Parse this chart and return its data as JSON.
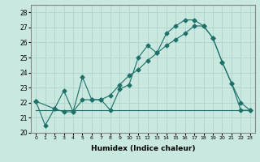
{
  "xlabel": "Humidex (Indice chaleur)",
  "ylabel": "",
  "xlim": [
    -0.5,
    23.5
  ],
  "ylim": [
    20,
    28.5
  ],
  "yticks": [
    20,
    21,
    22,
    23,
    24,
    25,
    26,
    27,
    28
  ],
  "xticks": [
    0,
    1,
    2,
    3,
    4,
    5,
    6,
    7,
    8,
    9,
    10,
    11,
    12,
    13,
    14,
    15,
    16,
    17,
    18,
    19,
    20,
    21,
    22,
    23
  ],
  "bg_color": "#c8e8e0",
  "grid_color": "#aacfc8",
  "line_color": "#1e7068",
  "line1_x": [
    0,
    1,
    2,
    3,
    4,
    5,
    6,
    7,
    8,
    9,
    10,
    11,
    12,
    13,
    14,
    15,
    16,
    17,
    18,
    19,
    20,
    21,
    22,
    23
  ],
  "line1_y": [
    22.1,
    20.5,
    21.6,
    22.8,
    21.4,
    23.7,
    22.2,
    22.2,
    21.5,
    22.9,
    23.2,
    25.0,
    25.8,
    25.3,
    26.6,
    27.1,
    27.5,
    27.5,
    27.1,
    26.3,
    24.7,
    23.3,
    21.5,
    21.5
  ],
  "line2_x": [
    0,
    2,
    3,
    4,
    5,
    6,
    7,
    8,
    9,
    10,
    11,
    12,
    13,
    14,
    15,
    16,
    17,
    18,
    19,
    20,
    21,
    22,
    23
  ],
  "line2_y": [
    22.1,
    21.6,
    21.4,
    21.4,
    22.2,
    22.2,
    22.2,
    22.5,
    23.2,
    23.8,
    24.2,
    24.8,
    25.3,
    25.8,
    26.2,
    26.6,
    27.1,
    27.1,
    26.3,
    24.7,
    23.3,
    22.0,
    21.5
  ],
  "line3_x": [
    0,
    23
  ],
  "line3_y": [
    21.5,
    21.5
  ],
  "marker": "D",
  "marker_size": 2.5,
  "linewidth": 0.8
}
